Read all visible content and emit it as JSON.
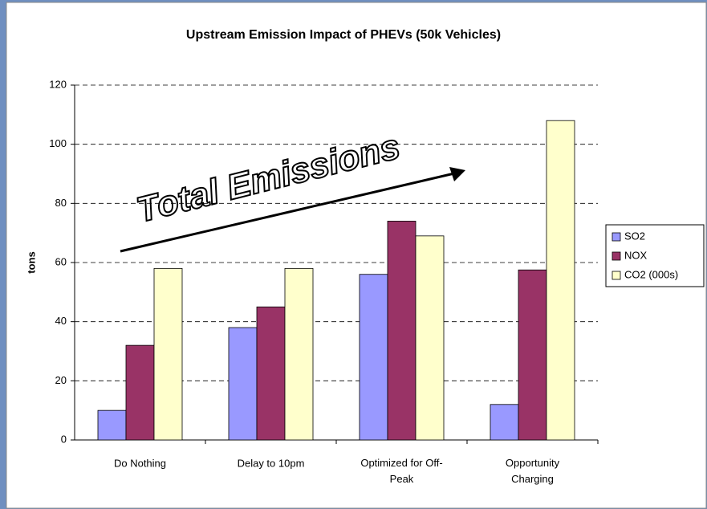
{
  "chart_data": {
    "type": "bar",
    "title": "Upstream Emission Impact of PHEVs (50k Vehicles)",
    "y_label": "tons",
    "annotation": "Total Emissions",
    "categories": [
      "Do Nothing",
      "Delay to 10pm",
      "Optimized for Off-Peak",
      "Opportunity Charging"
    ],
    "series": [
      {
        "name": "SO2",
        "color": "#9999ff",
        "values": [
          10,
          38,
          56,
          12
        ]
      },
      {
        "name": "NOX",
        "color": "#993366",
        "values": [
          32,
          45,
          74,
          57.5
        ]
      },
      {
        "name": "CO2 (000s)",
        "color": "#ffffcc",
        "values": [
          58,
          58,
          69,
          108
        ]
      }
    ],
    "ylim": [
      0,
      120
    ],
    "yticks": [
      0,
      20,
      40,
      60,
      80,
      100,
      120
    ],
    "grid": true,
    "legend": "right"
  }
}
